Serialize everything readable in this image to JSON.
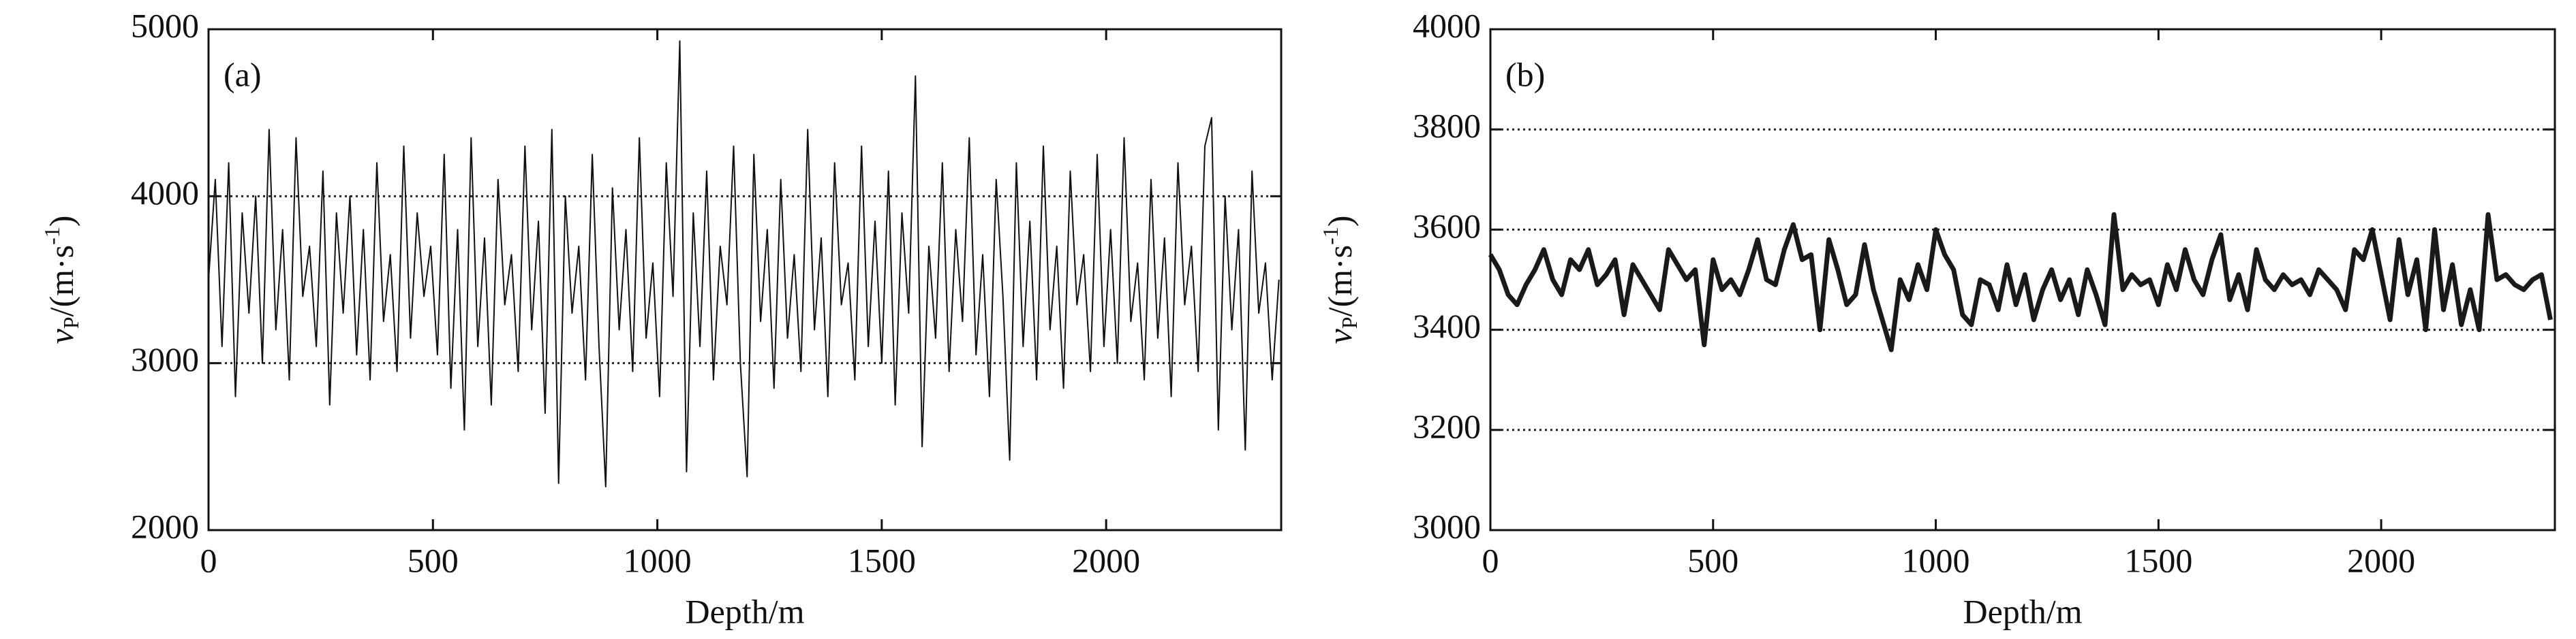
{
  "chart_data": [
    {
      "type": "line",
      "label": "(a)",
      "xlabel": "Depth/m",
      "ylabel": {
        "symbol": "v",
        "subscript": "P",
        "unit": "/(m·s",
        "superscript": "-1",
        "close": ")"
      },
      "xlim": [
        0,
        2390
      ],
      "xticks": [
        0,
        500,
        1000,
        1500,
        2000
      ],
      "ylim": [
        2000,
        5000
      ],
      "yticks": [
        2000,
        3000,
        4000,
        5000
      ],
      "grid": "dotted",
      "x": [
        0,
        15,
        30,
        45,
        60,
        75,
        90,
        105,
        120,
        135,
        150,
        165,
        180,
        195,
        210,
        225,
        240,
        255,
        270,
        285,
        300,
        315,
        330,
        345,
        360,
        375,
        390,
        405,
        420,
        435,
        450,
        465,
        480,
        495,
        510,
        525,
        540,
        555,
        570,
        585,
        600,
        615,
        630,
        645,
        660,
        675,
        690,
        705,
        720,
        735,
        750,
        765,
        780,
        795,
        810,
        825,
        840,
        855,
        870,
        885,
        900,
        915,
        930,
        945,
        960,
        975,
        990,
        1005,
        1020,
        1035,
        1050,
        1065,
        1080,
        1095,
        1110,
        1125,
        1140,
        1155,
        1170,
        1185,
        1200,
        1215,
        1230,
        1245,
        1260,
        1275,
        1290,
        1305,
        1320,
        1335,
        1350,
        1365,
        1380,
        1395,
        1410,
        1425,
        1440,
        1455,
        1470,
        1485,
        1500,
        1515,
        1530,
        1545,
        1560,
        1575,
        1590,
        1605,
        1620,
        1635,
        1650,
        1665,
        1680,
        1695,
        1710,
        1725,
        1740,
        1755,
        1770,
        1785,
        1800,
        1815,
        1830,
        1845,
        1860,
        1875,
        1890,
        1905,
        1920,
        1935,
        1950,
        1965,
        1980,
        1995,
        2010,
        2025,
        2040,
        2055,
        2070,
        2085,
        2100,
        2115,
        2130,
        2145,
        2160,
        2175,
        2190,
        2205,
        2220,
        2235,
        2250,
        2265,
        2280,
        2295,
        2310,
        2325,
        2340,
        2355,
        2370,
        2385
      ],
      "series": [
        {
          "color": "#111111",
          "values": [
            3500,
            4100,
            3100,
            4200,
            2800,
            3900,
            3300,
            4000,
            3000,
            4400,
            3200,
            3800,
            2900,
            4350,
            3400,
            3700,
            3100,
            4150,
            2750,
            3900,
            3300,
            4000,
            3050,
            3800,
            2900,
            4200,
            3250,
            3650,
            2950,
            4300,
            3150,
            3900,
            3400,
            3700,
            3050,
            4250,
            2850,
            3800,
            2600,
            4350,
            3100,
            3750,
            2750,
            4100,
            3350,
            3650,
            2950,
            4300,
            3200,
            3850,
            2700,
            4400,
            2280,
            4000,
            3300,
            3700,
            2900,
            4250,
            3100,
            2260,
            4050,
            3200,
            3800,
            2950,
            4350,
            3150,
            3600,
            2800,
            4200,
            3400,
            4930,
            2350,
            3900,
            3100,
            4150,
            2900,
            3700,
            3350,
            4300,
            3000,
            2320,
            4250,
            3250,
            3800,
            2850,
            4100,
            3150,
            3650,
            2950,
            4400,
            3200,
            3750,
            2800,
            4200,
            3350,
            3600,
            2900,
            4300,
            3100,
            3850,
            3000,
            4150,
            2750,
            3900,
            3300,
            4720,
            2500,
            3700,
            3150,
            4200,
            2950,
            3800,
            3250,
            4350,
            3050,
            3650,
            2800,
            4100,
            3400,
            2420,
            4200,
            3100,
            3850,
            2900,
            4300,
            3200,
            3700,
            2850,
            4150,
            3350,
            3650,
            2950,
            4250,
            3100,
            3800,
            3000,
            4350,
            3250,
            3600,
            2900,
            4100,
            3150,
            3750,
            2800,
            4200,
            3350,
            3700,
            2950,
            4300,
            4470,
            2600,
            4000,
            3200,
            3800,
            2480,
            4150,
            3300,
            3600,
            2900,
            3500
          ]
        }
      ]
    },
    {
      "type": "line",
      "label": "(b)",
      "xlabel": "Depth/m",
      "ylabel": {
        "symbol": "v",
        "subscript": "P",
        "unit": "/(m·s",
        "superscript": "-1",
        "close": ")"
      },
      "xlim": [
        0,
        2390
      ],
      "xticks": [
        0,
        500,
        1000,
        1500,
        2000
      ],
      "ylim": [
        3000,
        4000
      ],
      "yticks": [
        3000,
        3200,
        3400,
        3600,
        3800,
        4000
      ],
      "grid": "dotted",
      "x": [
        0,
        20,
        40,
        60,
        80,
        100,
        120,
        140,
        160,
        180,
        200,
        220,
        240,
        260,
        280,
        300,
        320,
        340,
        360,
        380,
        400,
        420,
        440,
        460,
        480,
        500,
        520,
        540,
        560,
        580,
        600,
        620,
        640,
        660,
        680,
        700,
        720,
        740,
        760,
        780,
        800,
        820,
        840,
        860,
        880,
        900,
        920,
        940,
        960,
        980,
        1000,
        1020,
        1040,
        1060,
        1080,
        1100,
        1120,
        1140,
        1160,
        1180,
        1200,
        1220,
        1240,
        1260,
        1280,
        1300,
        1320,
        1340,
        1360,
        1380,
        1400,
        1420,
        1440,
        1460,
        1480,
        1500,
        1520,
        1540,
        1560,
        1580,
        1600,
        1620,
        1640,
        1660,
        1680,
        1700,
        1720,
        1740,
        1760,
        1780,
        1800,
        1820,
        1840,
        1860,
        1880,
        1900,
        1920,
        1940,
        1960,
        1980,
        2000,
        2020,
        2040,
        2060,
        2080,
        2100,
        2120,
        2140,
        2160,
        2180,
        2200,
        2220,
        2240,
        2260,
        2280,
        2300,
        2320,
        2340,
        2360,
        2380
      ],
      "series": [
        {
          "color": "#1a1a1a",
          "values": [
            3550,
            3520,
            3470,
            3450,
            3490,
            3520,
            3560,
            3500,
            3470,
            3540,
            3520,
            3560,
            3490,
            3510,
            3540,
            3430,
            3530,
            3500,
            3470,
            3440,
            3560,
            3530,
            3500,
            3520,
            3370,
            3540,
            3480,
            3500,
            3470,
            3520,
            3580,
            3500,
            3490,
            3560,
            3610,
            3540,
            3550,
            3400,
            3580,
            3520,
            3450,
            3470,
            3570,
            3480,
            3420,
            3360,
            3500,
            3460,
            3530,
            3480,
            3600,
            3550,
            3520,
            3430,
            3410,
            3500,
            3490,
            3440,
            3530,
            3450,
            3510,
            3420,
            3480,
            3520,
            3460,
            3500,
            3430,
            3520,
            3470,
            3410,
            3630,
            3480,
            3510,
            3490,
            3500,
            3450,
            3530,
            3480,
            3560,
            3500,
            3470,
            3540,
            3590,
            3460,
            3510,
            3440,
            3560,
            3500,
            3480,
            3510,
            3490,
            3500,
            3470,
            3520,
            3500,
            3480,
            3440,
            3560,
            3540,
            3600,
            3510,
            3420,
            3580,
            3470,
            3540,
            3400,
            3600,
            3440,
            3530,
            3410,
            3480,
            3400,
            3630,
            3500,
            3510,
            3490,
            3480,
            3500,
            3510,
            3420
          ]
        }
      ]
    }
  ]
}
